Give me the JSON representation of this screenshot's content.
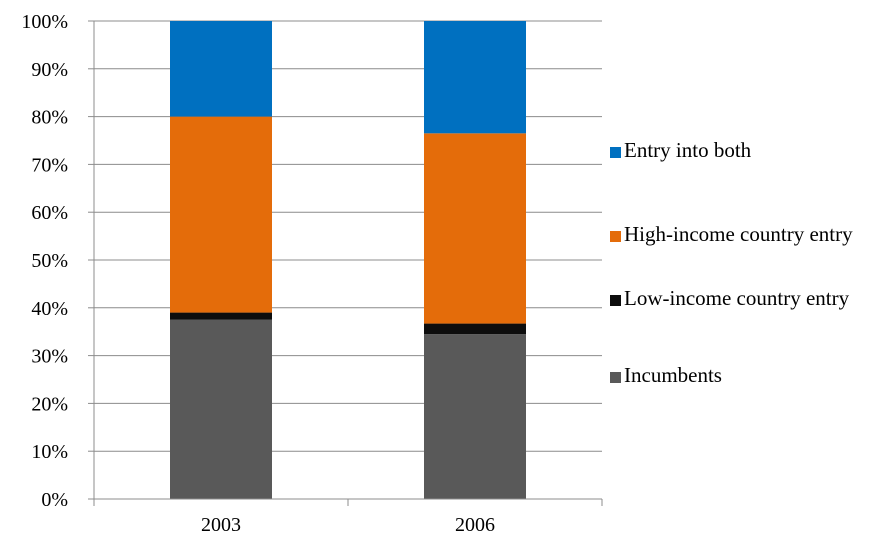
{
  "chart_data": {
    "type": "bar",
    "stacked": true,
    "normalized": true,
    "categories": [
      "2003",
      "2006"
    ],
    "series": [
      {
        "name": "Incumbents",
        "color": "#595959",
        "values": [
          37.5,
          34.5
        ]
      },
      {
        "name": "Low-income country entry",
        "color": "#0d0d0d",
        "values": [
          1.5,
          2.2
        ]
      },
      {
        "name": "High-income country entry",
        "color": "#e46c0a",
        "values": [
          41.0,
          39.8
        ]
      },
      {
        "name": "Entry into both",
        "color": "#0070c0",
        "values": [
          20.0,
          23.5
        ]
      }
    ],
    "ylim": [
      0,
      100
    ],
    "yticks": [
      "0%",
      "10%",
      "20%",
      "30%",
      "40%",
      "50%",
      "60%",
      "70%",
      "80%",
      "90%",
      "100%"
    ],
    "grid": true,
    "legend_position": "right",
    "legend_order": [
      "Entry into both",
      "High-income country entry",
      "Low-income country entry",
      "Incumbents"
    ]
  }
}
